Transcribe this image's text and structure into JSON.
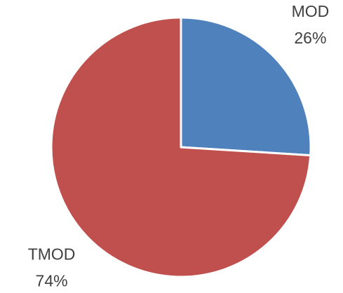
{
  "chart_data": {
    "type": "pie",
    "categories": [
      "MOD",
      "TMOD"
    ],
    "values": [
      26,
      74
    ],
    "value_labels": [
      "26%",
      "74%"
    ],
    "colors": [
      "#4f81bd",
      "#c0504d"
    ]
  }
}
